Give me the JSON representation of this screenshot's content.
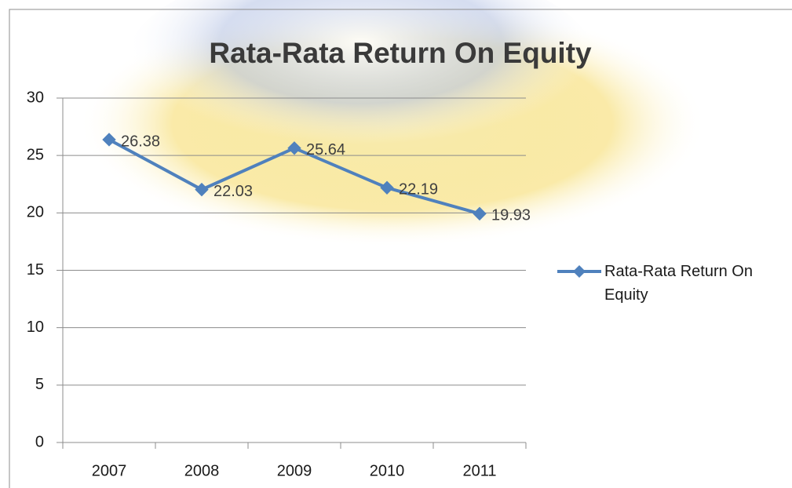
{
  "chart_data": {
    "type": "line",
    "title": "Rata-Rata Return On Equity",
    "categories": [
      "2007",
      "2008",
      "2009",
      "2010",
      "2011"
    ],
    "series": [
      {
        "name": "Rata-Rata Return On Equity",
        "color": "#4f81bd",
        "values": [
          26.38,
          22.03,
          25.64,
          22.19,
          19.93
        ]
      }
    ],
    "ylim": [
      0,
      30
    ],
    "yticks": [
      0,
      5,
      10,
      15,
      20,
      25,
      30
    ],
    "grid": true,
    "data_labels": true,
    "legend": "right"
  }
}
